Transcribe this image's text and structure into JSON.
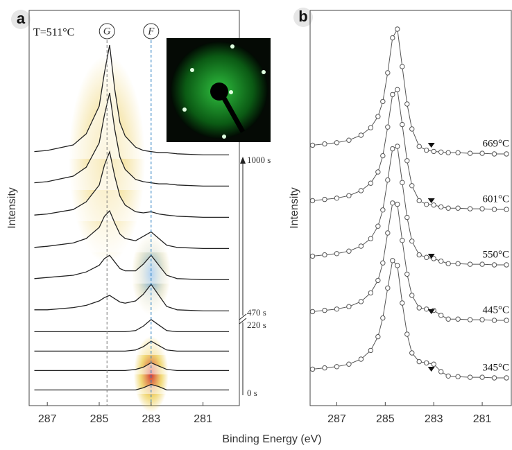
{
  "xlabel": "Binding Energy (eV)",
  "chart_data": [
    {
      "type": "waterfall",
      "label": "a",
      "title": "T=511°C",
      "ylabel": "Intensity",
      "xlim": [
        287.7,
        279.6
      ],
      "xticks": [
        287,
        285,
        283,
        281
      ],
      "peak_lines": [
        {
          "label": "G",
          "x": 284.7
        },
        {
          "label": "F",
          "x": 283
        }
      ],
      "time_labels": [
        "1000 s",
        "470 s",
        "220 s",
        "0 s"
      ],
      "x": [
        287.5,
        287,
        286,
        285.5,
        285,
        284.8,
        284.6,
        284.4,
        284.2,
        284,
        283.6,
        283.3,
        283,
        282.7,
        282.4,
        282,
        281,
        280
      ],
      "series": [
        {
          "color": "#222",
          "values": [
            0.4,
            0.5,
            1.0,
            2.0,
            4.5,
            7.5,
            10,
            6,
            3,
            1.8,
            0.8,
            0.5,
            0.4,
            0.3,
            0.3,
            0.2,
            0.1,
            0.1
          ]
        },
        {
          "color": "#222",
          "values": [
            0.4,
            0.5,
            1.0,
            1.8,
            4,
            6.5,
            8.5,
            5.2,
            2.7,
            1.6,
            0.7,
            0.5,
            0.4,
            0.3,
            0.3,
            0.2,
            0.1,
            0.1
          ]
        },
        {
          "color": "#222",
          "values": [
            0.3,
            0.4,
            0.8,
            1.5,
            3,
            4.8,
            6,
            3.8,
            2,
            1.2,
            0.6,
            0.5,
            0.6,
            0.4,
            0.3,
            0.2,
            0.1,
            0.1
          ]
        },
        {
          "color": "#222",
          "values": [
            0.2,
            0.3,
            0.6,
            1.0,
            2,
            3,
            3.5,
            2.4,
            1.4,
            1,
            0.8,
            1.2,
            1.6,
            1.0,
            0.4,
            0.2,
            0.1,
            0.1
          ]
        },
        {
          "color": "#222",
          "values": [
            0.2,
            0.3,
            0.5,
            0.8,
            1.4,
            2,
            2.3,
            1.7,
            1.1,
            0.9,
            0.9,
            1.5,
            2.3,
            1.4,
            0.5,
            0.2,
            0.1,
            0.1
          ]
        },
        {
          "color": "#222",
          "values": [
            0.2,
            0.2,
            0.4,
            0.6,
            1,
            1.3,
            1.5,
            1.2,
            0.9,
            0.8,
            1,
            1.6,
            2.5,
            1.5,
            0.5,
            0.2,
            0.1,
            0.1
          ]
        },
        {
          "color": "#222",
          "values": [
            0.1,
            0.1,
            0.1,
            0.1,
            0.1,
            0.1,
            0.1,
            0.1,
            0.1,
            0.1,
            0.2,
            0.6,
            1.2,
            0.7,
            0.2,
            0.1,
            0.1,
            0.1
          ]
        },
        {
          "color": "#222",
          "values": [
            0.1,
            0.1,
            0.1,
            0.1,
            0.1,
            0.1,
            0.1,
            0.1,
            0.1,
            0.1,
            0.2,
            0.5,
            1.0,
            0.6,
            0.2,
            0.1,
            0.1,
            0.1
          ]
        },
        {
          "color": "#222",
          "values": [
            0.1,
            0.1,
            0.1,
            0.1,
            0.1,
            0.1,
            0.1,
            0.1,
            0.1,
            0.1,
            0.2,
            0.4,
            0.8,
            0.5,
            0.2,
            0.1,
            0.1,
            0.1
          ]
        },
        {
          "color": "#222",
          "values": [
            0.1,
            0.1,
            0.1,
            0.1,
            0.1,
            0.1,
            0.1,
            0.1,
            0.1,
            0.1,
            0.1,
            0.3,
            0.6,
            0.4,
            0.1,
            0.1,
            0.1,
            0.1
          ]
        }
      ]
    },
    {
      "type": "offset_scatter",
      "label": "b",
      "ylabel": "Intensity",
      "xlim": [
        288.1,
        279.8
      ],
      "xticks": [
        287,
        285,
        283,
        281
      ],
      "marker_x": 283.1,
      "x": [
        288,
        287.5,
        287,
        286.5,
        286,
        285.6,
        285.3,
        285.1,
        284.9,
        284.7,
        284.5,
        284.3,
        284.1,
        283.9,
        283.6,
        283.3,
        283.0,
        282.7,
        282.4,
        282,
        281.5,
        281,
        280.5,
        280
      ],
      "series": [
        {
          "name": "669°C",
          "color": "#555",
          "values": [
            0.7,
            0.8,
            0.9,
            1.1,
            1.5,
            2.1,
            3.0,
            4.2,
            6.5,
            9.3,
            10,
            7,
            4,
            2,
            0.6,
            0.3,
            0.2,
            0.15,
            0.1,
            0.1,
            0.05,
            0.05,
            0,
            0
          ]
        },
        {
          "name": "601°C",
          "color": "#555",
          "values": [
            0.7,
            0.8,
            0.9,
            1.1,
            1.5,
            2.1,
            3.0,
            4.3,
            6.6,
            9.2,
            9.6,
            6.8,
            3.9,
            1.9,
            0.7,
            0.4,
            0.35,
            0.2,
            0.1,
            0.1,
            0.05,
            0.05,
            0,
            0
          ]
        },
        {
          "name": "550°C",
          "color": "#555",
          "values": [
            0.7,
            0.8,
            0.9,
            1.1,
            1.5,
            2.1,
            3.1,
            4.4,
            6.8,
            9.3,
            9.5,
            6.6,
            3.8,
            1.9,
            0.8,
            0.6,
            0.5,
            0.3,
            0.1,
            0.1,
            0.05,
            0.05,
            0,
            0
          ]
        },
        {
          "name": "445°C",
          "color": "#555",
          "values": [
            0.7,
            0.8,
            0.9,
            1.1,
            1.5,
            2.2,
            3.2,
            4.6,
            7.0,
            9.4,
            9.3,
            6.4,
            3.7,
            2.0,
            1.0,
            0.9,
            0.8,
            0.4,
            0.1,
            0.1,
            0.05,
            0.05,
            0,
            0
          ]
        },
        {
          "name": "345°C",
          "color": "#555",
          "values": [
            0.7,
            0.8,
            0.9,
            1.1,
            1.5,
            2.2,
            3.3,
            4.8,
            7.2,
            9.4,
            9.0,
            6.0,
            3.5,
            2.0,
            1.3,
            1.2,
            1.1,
            0.5,
            0.15,
            0.1,
            0.05,
            0.05,
            0,
            0
          ]
        }
      ]
    }
  ]
}
